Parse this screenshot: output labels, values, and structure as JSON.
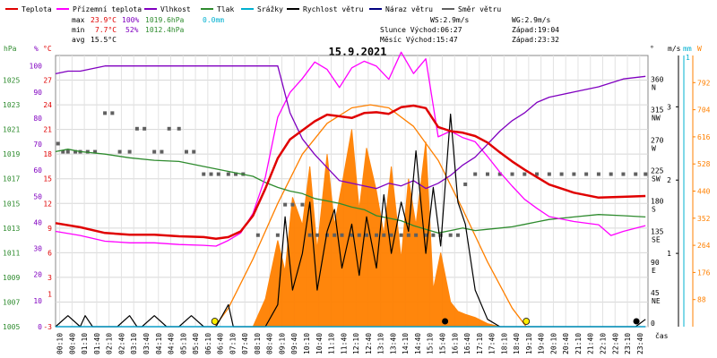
{
  "chart_data": {
    "type": "line",
    "title": "15.9.2021",
    "legend": [
      {
        "name": "Teplota",
        "color": "#e00000"
      },
      {
        "name": "Přízemní teplota",
        "color": "#ff00ff"
      },
      {
        "name": "Vlhkost",
        "color": "#8000c0"
      },
      {
        "name": "Tlak",
        "color": "#2e8b2e"
      },
      {
        "name": "Srážky",
        "color": "#00b0d0"
      },
      {
        "name": "Rychlost větru",
        "color": "#000000"
      },
      {
        "name": "Náraz větru",
        "color": "#000080"
      },
      {
        "name": "Směr větru",
        "color": "#606060"
      }
    ],
    "stats": {
      "max": {
        "label": "max",
        "temp": "23.9°C",
        "hum": "100%",
        "press": "1019.6hPa",
        "rain": "0.0mm"
      },
      "min": {
        "label": "min",
        "temp": "7.7°C",
        "hum": "52%",
        "press": "1012.4hPa"
      },
      "avg": {
        "label": "avg",
        "temp": "15.5°C"
      }
    },
    "info": {
      "ws": "WS:2.9m/s",
      "wg": "WG:2.9m/s",
      "sun_rise": "Slunce Východ:06:27",
      "sun_set": "Západ:19:04",
      "moon_rise": "Měsíc  Východ:15:47",
      "moon_set": "Západ:23:32"
    },
    "axis_units": {
      "pressure": "hPa",
      "humidity": "%",
      "temperature": "°C",
      "direction": "°",
      "wind": "m/s",
      "rain": "mm",
      "solar": "W",
      "time": "čas"
    },
    "axes": {
      "pressure_ticks": [
        "1025",
        "1023",
        "1021",
        "1019",
        "1017",
        "1015",
        "1013",
        "1011",
        "1009",
        "1007",
        "1005"
      ],
      "pressure_range": [
        1005,
        1027
      ],
      "humidity_ticks": [
        "100",
        "90",
        "80",
        "70",
        "60",
        "50",
        "40",
        "30",
        "20",
        "10",
        "0"
      ],
      "temperature_ticks": [
        "27",
        "24",
        "21",
        "18",
        "15",
        "12",
        "9",
        "6",
        "3",
        "1",
        "-3"
      ],
      "temperature_range": [
        -3,
        30
      ],
      "direction_ticks": [
        {
          "deg": "360",
          "dir": "N"
        },
        {
          "deg": "315",
          "dir": "NW"
        },
        {
          "deg": "270",
          "dir": "W"
        },
        {
          "deg": "225",
          "dir": "SW"
        },
        {
          "deg": "180",
          "dir": "S"
        },
        {
          "deg": "135",
          "dir": "SE"
        },
        {
          "deg": "90",
          "dir": "E"
        },
        {
          "deg": "45",
          "dir": "NE"
        },
        {
          "deg": "0",
          "dir": ""
        }
      ],
      "wind_ticks": [
        "3",
        "2",
        "1"
      ],
      "wind_range": [
        0,
        3.7
      ],
      "rain_ticks": [
        "1"
      ],
      "solar_ticks": [
        "792",
        "704",
        "616",
        "528",
        "440",
        "352",
        "264",
        "176",
        "88"
      ],
      "solar_range": [
        0,
        880
      ],
      "time_ticks": [
        "00:10",
        "00:40",
        "01:10",
        "01:40",
        "02:10",
        "02:40",
        "03:10",
        "03:40",
        "04:10",
        "04:40",
        "05:10",
        "05:40",
        "06:10",
        "06:40",
        "07:10",
        "07:40",
        "08:10",
        "08:40",
        "09:10",
        "09:40",
        "10:10",
        "10:40",
        "11:10",
        "11:40",
        "12:10",
        "12:40",
        "13:10",
        "13:40",
        "14:10",
        "14:40",
        "15:10",
        "15:40",
        "16:10",
        "16:40",
        "17:10",
        "17:40",
        "18:10",
        "18:40",
        "19:10",
        "19:40",
        "20:10",
        "20:40",
        "21:10",
        "21:40",
        "22:10",
        "22:40",
        "23:10",
        "23:40"
      ]
    },
    "series": [
      {
        "name": "Teplota",
        "color": "#e00000",
        "unit": "°C",
        "x": [
          0,
          1,
          2,
          3,
          4,
          5,
          6,
          6.5,
          7,
          7.5,
          8,
          8.5,
          9,
          9.5,
          10,
          10.5,
          11,
          11.5,
          12,
          12.5,
          13,
          13.5,
          14,
          14.5,
          15,
          15.5,
          16,
          16.5,
          17,
          17.5,
          18,
          18.5,
          19,
          19.5,
          20,
          21,
          22,
          23,
          23.9
        ],
        "y": [
          9.6,
          9.1,
          8.4,
          8.2,
          8.2,
          8.0,
          7.9,
          7.7,
          7.9,
          8.6,
          10.5,
          13.8,
          17.5,
          19.8,
          20.9,
          22.0,
          22.8,
          22.6,
          22.4,
          23.0,
          23.1,
          22.9,
          23.7,
          23.9,
          23.6,
          21.3,
          20.8,
          20.6,
          20.2,
          19.4,
          18.2,
          17.1,
          16.1,
          15.2,
          14.3,
          13.3,
          12.7,
          12.8,
          12.9
        ]
      },
      {
        "name": "Přízemní teplota",
        "color": "#ff00ff",
        "unit": "°C",
        "x": [
          0,
          1,
          2,
          3,
          4,
          5,
          6,
          6.5,
          7,
          7.5,
          8,
          8.5,
          9,
          9.5,
          10,
          10.5,
          11,
          11.5,
          12,
          12.5,
          13,
          13.5,
          14,
          14.5,
          15,
          15.5,
          16,
          16.5,
          17,
          17.5,
          18,
          18.5,
          19,
          19.5,
          20,
          21,
          22,
          22.5,
          23,
          23.9
        ],
        "y": [
          8.6,
          8.1,
          7.4,
          7.2,
          7.2,
          7.0,
          6.9,
          6.8,
          7.5,
          8.4,
          10.8,
          15.2,
          22.5,
          25.5,
          27.2,
          29.2,
          28.3,
          26.1,
          28.5,
          29.3,
          28.7,
          27.1,
          30.4,
          27.8,
          29.6,
          20.1,
          20.8,
          20.0,
          19.5,
          17.7,
          15.8,
          14.1,
          12.5,
          11.4,
          10.4,
          9.8,
          9.4,
          8.1,
          8.6,
          9.3
        ]
      },
      {
        "name": "Vlhkost",
        "color": "#8000c0",
        "unit": "%",
        "x": [
          0,
          0.5,
          1,
          2,
          3,
          4,
          5,
          6,
          7,
          8,
          9,
          9.5,
          10,
          10.5,
          11,
          11.5,
          12,
          12.5,
          13,
          13.5,
          14,
          14.5,
          15,
          15.5,
          16,
          16.5,
          17,
          17.5,
          18,
          18.5,
          19,
          19.5,
          20,
          21,
          22,
          23,
          23.9
        ],
        "y": [
          97,
          98,
          98,
          100,
          100,
          100,
          100,
          100,
          100,
          100,
          100,
          82,
          72,
          66,
          61,
          56,
          55,
          54,
          53,
          55,
          54,
          56,
          53,
          55,
          58,
          62,
          65,
          70,
          75,
          79,
          82,
          86,
          88,
          90,
          92,
          95,
          96
        ]
      },
      {
        "name": "Tlak",
        "color": "#2e8b2e",
        "unit": "hPa",
        "x": [
          0,
          0.5,
          1,
          2,
          3,
          4,
          5,
          6,
          7,
          8,
          8.5,
          9,
          9.5,
          10,
          10.5,
          11,
          11.5,
          12,
          12.5,
          13,
          13.5,
          14,
          14.5,
          15,
          15.5,
          16,
          16.5,
          17,
          17.5,
          18,
          18.5,
          19,
          19.5,
          20,
          21,
          22,
          23,
          23.9
        ],
        "y": [
          1019.2,
          1019.4,
          1019.2,
          1019.0,
          1018.7,
          1018.5,
          1018.4,
          1018.0,
          1017.6,
          1017.2,
          1016.7,
          1016.3,
          1016.0,
          1015.8,
          1015.4,
          1015.2,
          1015.0,
          1014.7,
          1014.5,
          1014.0,
          1013.8,
          1013.6,
          1013.2,
          1012.9,
          1012.6,
          1012.8,
          1013.0,
          1012.8,
          1012.9,
          1013.0,
          1013.1,
          1013.3,
          1013.5,
          1013.7,
          1013.9,
          1014.1,
          1014.0,
          1013.9
        ]
      },
      {
        "name": "Rychlost větru",
        "color": "#000000",
        "unit": "m/s",
        "x": [
          0,
          0.5,
          1,
          1.2,
          1.5,
          2,
          2.5,
          3,
          3.3,
          3.5,
          4,
          4.5,
          5,
          5.5,
          6,
          6.5,
          7,
          7.2,
          7.5,
          8,
          8.5,
          9,
          9.3,
          9.6,
          10,
          10.3,
          10.6,
          11,
          11.3,
          11.6,
          12,
          12.3,
          12.6,
          13,
          13.3,
          13.6,
          14,
          14.3,
          14.6,
          15,
          15.3,
          15.6,
          16,
          16.3,
          16.6,
          17,
          17.5,
          18,
          18.5,
          19,
          19.5,
          20,
          20.5,
          21,
          21.5,
          22,
          22.5,
          23,
          23.5,
          23.9
        ],
        "y": [
          0,
          0.15,
          0,
          0.15,
          0,
          0,
          0,
          0.15,
          0,
          0,
          0.15,
          0,
          0,
          0.15,
          0,
          0,
          0.3,
          0,
          0,
          0,
          0,
          0.3,
          1.5,
          0.5,
          1.0,
          1.7,
          0.5,
          1.3,
          1.6,
          0.8,
          1.4,
          0.7,
          1.5,
          0.8,
          1.8,
          1.0,
          1.7,
          1.3,
          2.4,
          1.0,
          1.9,
          1.1,
          2.9,
          1.7,
          1.4,
          0.5,
          0.1,
          0,
          0,
          0,
          0,
          0,
          0,
          0,
          0,
          0,
          0,
          0,
          0,
          0.1
        ]
      },
      {
        "name": "Náraz větru",
        "color": "#000080",
        "unit": "m/s",
        "x": [
          0,
          15.8,
          23.9
        ],
        "y": [
          0,
          0,
          0
        ]
      },
      {
        "name": "Směr větru",
        "color": "#606060",
        "unit": "°",
        "type": "scatter",
        "x": [
          0.1,
          0.3,
          0.5,
          0.8,
          1.0,
          1.3,
          1.6,
          2.0,
          2.3,
          2.6,
          3.0,
          3.3,
          3.6,
          4.0,
          4.3,
          4.6,
          5.0,
          5.3,
          5.6,
          6.0,
          6.3,
          6.6,
          7.0,
          7.3,
          7.6,
          8.2,
          9.0,
          9.3,
          9.6,
          10.0,
          10.3,
          10.6,
          11.0,
          11.3,
          11.6,
          12.0,
          12.3,
          12.6,
          13.0,
          13.3,
          13.6,
          14.0,
          14.3,
          14.6,
          15.0,
          15.3,
          15.6,
          16.0,
          16.3,
          16.6,
          17.0,
          17.5,
          18.0,
          18.5,
          19.0,
          19.5,
          20.0,
          20.5,
          21.0,
          21.5,
          22.0,
          22.5,
          23.0,
          23.5,
          23.9
        ],
        "y": [
          270,
          258,
          258,
          258,
          258,
          258,
          258,
          315,
          315,
          258,
          258,
          292,
          292,
          258,
          258,
          292,
          292,
          258,
          258,
          225,
          225,
          225,
          225,
          225,
          225,
          135,
          135,
          180,
          180,
          180,
          135,
          135,
          135,
          135,
          135,
          135,
          135,
          135,
          135,
          135,
          135,
          135,
          135,
          135,
          135,
          135,
          135,
          135,
          135,
          210,
          225,
          225,
          225,
          225,
          225,
          225,
          225,
          225,
          225,
          225,
          225,
          225,
          225,
          225,
          225
        ]
      },
      {
        "name": "Srážky",
        "color": "#00b0d0",
        "unit": "mm",
        "x": [
          0,
          23.9
        ],
        "y": [
          0,
          0
        ]
      },
      {
        "name": "Sluneční záření",
        "color": "#ff8000",
        "unit": "W",
        "type": "area",
        "x": [
          8.0,
          8.5,
          9.0,
          9.3,
          9.6,
          10.0,
          10.3,
          10.6,
          11.0,
          11.3,
          11.6,
          12.0,
          12.3,
          12.6,
          13.0,
          13.3,
          13.6,
          14.0,
          14.3,
          14.6,
          15.0,
          15.3,
          15.6,
          16.0,
          16.3,
          16.6,
          17.0,
          17.5,
          18.0
        ],
        "y": [
          0,
          90,
          280,
          180,
          420,
          330,
          520,
          250,
          560,
          330,
          460,
          640,
          380,
          580,
          440,
          300,
          520,
          220,
          480,
          330,
          600,
          120,
          240,
          80,
          50,
          40,
          30,
          10,
          0
        ]
      },
      {
        "name": "Teoretické záření",
        "color": "#ff8000",
        "unit": "W",
        "x": [
          6.45,
          7,
          8,
          9,
          10,
          11,
          12,
          12.75,
          13.5,
          14.5,
          15.5,
          16.5,
          17.5,
          18.5,
          19.07
        ],
        "y": [
          0,
          60,
          220,
          400,
          560,
          660,
          710,
          720,
          710,
          650,
          540,
          380,
          210,
          60,
          0
        ]
      }
    ],
    "markers": {
      "sunrise": 6.45,
      "sunset": 19.07,
      "moonrise": 15.78,
      "moonset": 23.53
    }
  }
}
